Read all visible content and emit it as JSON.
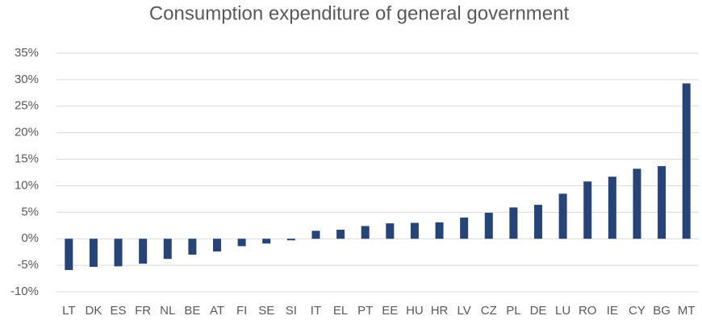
{
  "chart_data": {
    "type": "bar",
    "title": "Consumption expenditure of general government",
    "categories": [
      "LT",
      "DK",
      "ES",
      "FR",
      "NL",
      "BE",
      "AT",
      "FI",
      "SE",
      "SI",
      "IT",
      "EL",
      "PT",
      "EE",
      "HU",
      "HR",
      "LV",
      "CZ",
      "PL",
      "DE",
      "LU",
      "RO",
      "IE",
      "CY",
      "BG",
      "MT"
    ],
    "values": [
      -5.9,
      -5.3,
      -5.2,
      -4.7,
      -3.8,
      -3.0,
      -2.4,
      -1.4,
      -0.9,
      -0.3,
      1.5,
      1.7,
      2.4,
      2.9,
      3.0,
      3.1,
      4.0,
      4.9,
      5.9,
      6.4,
      8.5,
      10.8,
      11.7,
      13.2,
      13.7,
      29.3
    ],
    "color": "#264478",
    "ylim": [
      -10,
      35
    ],
    "yticks": [
      {
        "value": -10,
        "label": "-10%"
      },
      {
        "value": -5,
        "label": "-5%"
      },
      {
        "value": 0,
        "label": "0%"
      },
      {
        "value": 5,
        "label": "5%"
      },
      {
        "value": 10,
        "label": "10%"
      },
      {
        "value": 15,
        "label": "15%"
      },
      {
        "value": 20,
        "label": "20%"
      },
      {
        "value": 25,
        "label": "25%"
      },
      {
        "value": 30,
        "label": "30%"
      },
      {
        "value": 35,
        "label": "35%"
      }
    ],
    "grid": true
  }
}
